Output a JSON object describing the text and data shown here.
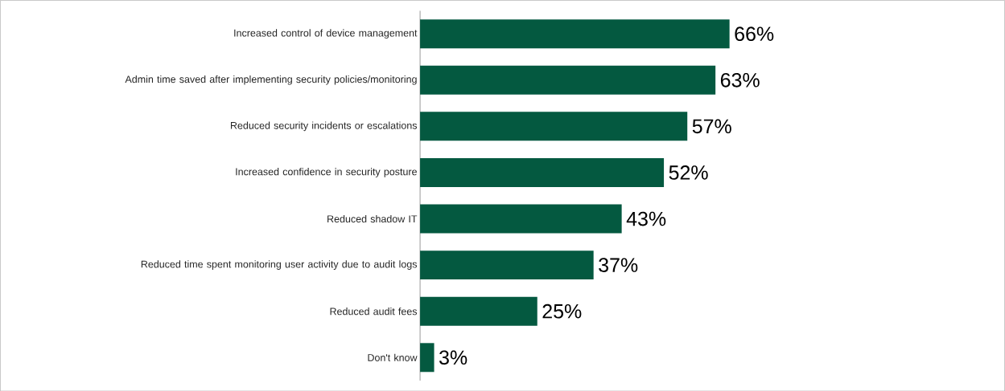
{
  "chart_data": {
    "type": "bar",
    "orientation": "horizontal",
    "categories": [
      "Increased control of device management",
      "Admin time saved after implementing security policies/monitoring",
      "Reduced security incidents or escalations",
      "Increased confidence in security posture",
      "Reduced shadow IT",
      "Reduced time spent monitoring user activity due to audit logs",
      "Reduced audit fees",
      "Don't know"
    ],
    "values": [
      66,
      63,
      57,
      52,
      43,
      37,
      25,
      3
    ],
    "value_labels": [
      "66%",
      "63%",
      "57%",
      "52%",
      "43%",
      "37%",
      "25%",
      "3%"
    ],
    "color": "#045940",
    "xlim": [
      0,
      124
    ]
  }
}
